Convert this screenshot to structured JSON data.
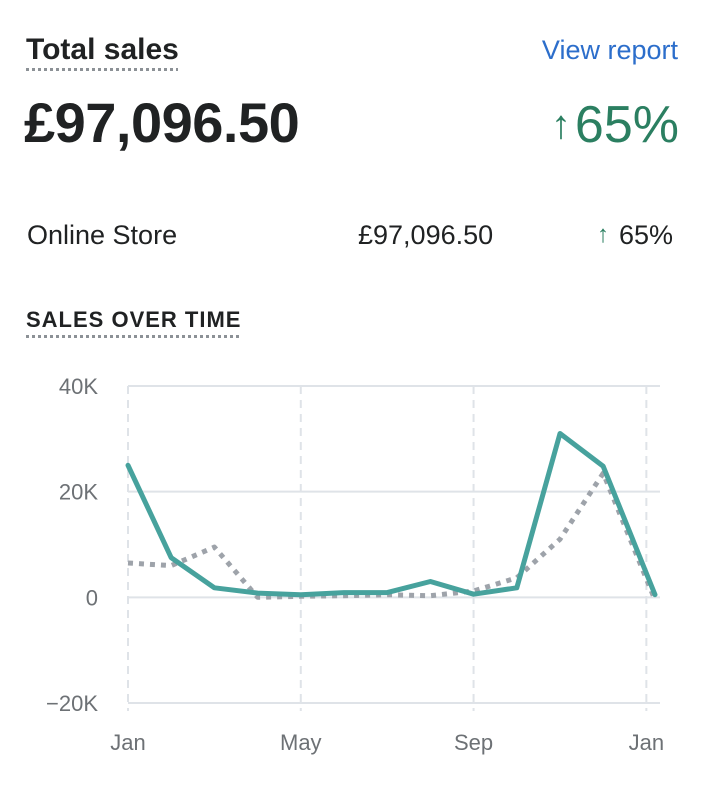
{
  "card": {
    "title": "Total sales",
    "view_report": "View report",
    "total": "£97,096.50",
    "change_arrow": "↑",
    "change": "65%"
  },
  "breakdown": [
    {
      "label": "Online Store",
      "value": "£97,096.50",
      "change_arrow": "↑",
      "change": "65%"
    }
  ],
  "section_title": "SALES OVER TIME",
  "colors": {
    "primary": "#47a29d",
    "comparison": "#9ea3aa",
    "positive": "#2b7f61",
    "link": "#2c6ecb"
  },
  "chart_data": {
    "type": "line",
    "ylim": [
      -20000,
      40000
    ],
    "yticks": [
      {
        "value": 40000,
        "label": "40K"
      },
      {
        "value": 20000,
        "label": "20K"
      },
      {
        "value": 0,
        "label": "0"
      },
      {
        "value": -20000,
        "label": "−20K"
      }
    ],
    "xticks": [
      {
        "index": 0,
        "label": "Jan"
      },
      {
        "index": 4,
        "label": "May"
      },
      {
        "index": 8,
        "label": "Sep"
      },
      {
        "index": 12,
        "label": "Jan"
      }
    ],
    "xmax": 12.2,
    "series": [
      {
        "style": "solid",
        "points": [
          [
            0,
            25000
          ],
          [
            1,
            7500
          ],
          [
            2,
            1800
          ],
          [
            3,
            800
          ],
          [
            4,
            500
          ],
          [
            5,
            900
          ],
          [
            6,
            900
          ],
          [
            7,
            3000
          ],
          [
            8,
            600
          ],
          [
            9,
            1800
          ],
          [
            10,
            31000
          ],
          [
            11,
            24800
          ],
          [
            12.2,
            500
          ]
        ]
      },
      {
        "style": "dotted",
        "points": [
          [
            0,
            6500
          ],
          [
            1,
            6000
          ],
          [
            2,
            9500
          ],
          [
            3,
            0
          ],
          [
            4,
            200
          ],
          [
            5,
            300
          ],
          [
            6,
            500
          ],
          [
            7,
            300
          ],
          [
            8,
            1200
          ],
          [
            9,
            3700
          ],
          [
            10,
            11000
          ],
          [
            11,
            23500
          ],
          [
            12.2,
            -500
          ]
        ]
      }
    ]
  }
}
